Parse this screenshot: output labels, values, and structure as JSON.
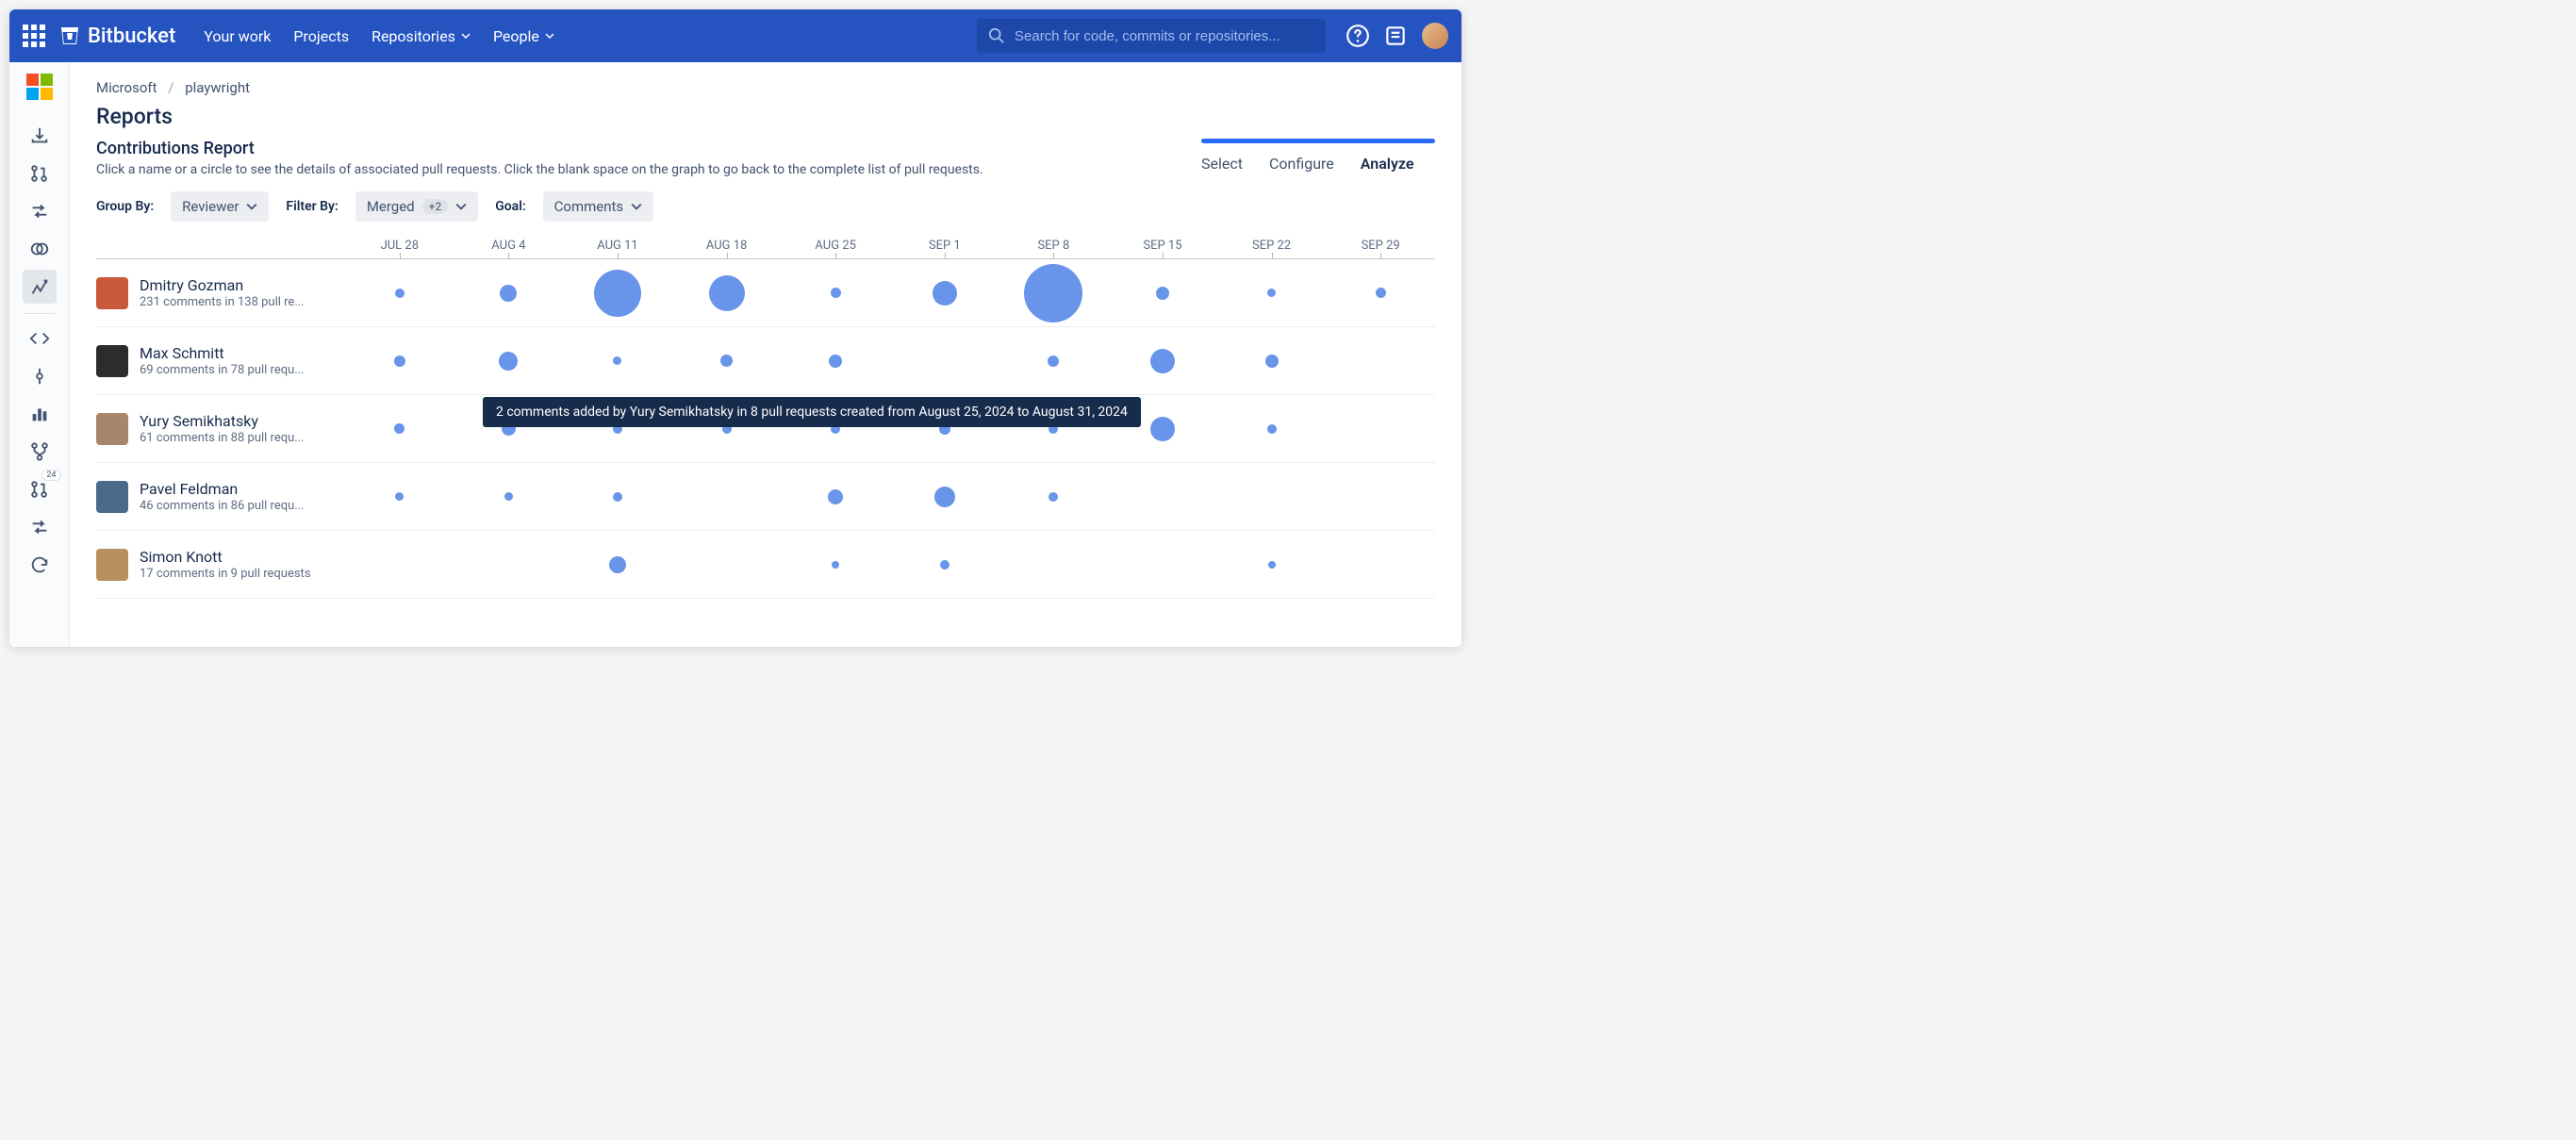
{
  "brand": "Bitbucket",
  "nav": {
    "your_work": "Your work",
    "projects": "Projects",
    "repositories": "Repositories",
    "people": "People"
  },
  "search_placeholder": "Search for code, commits or repositories...",
  "sidebar_badge": "24",
  "breadcrumb": {
    "org": "Microsoft",
    "repo": "playwright"
  },
  "page_title": "Reports",
  "report_title": "Contributions Report",
  "report_desc": "Click a name or a circle to see the details of associated pull requests. Click the blank space on the graph to go back to the complete list of pull requests.",
  "steps": {
    "select": "Select",
    "configure": "Configure",
    "analyze": "Analyze"
  },
  "filters": {
    "group_by_label": "Group By:",
    "group_by_value": "Reviewer",
    "filter_by_label": "Filter By:",
    "filter_by_value": "Merged",
    "filter_extra": "+2",
    "goal_label": "Goal:",
    "goal_value": "Comments"
  },
  "tooltip_text": "2 comments added by Yury Semikhatsky in 8 pull requests created from August 25, 2024 to August 31, 2024",
  "chart": {
    "type": "bubble-grid",
    "bubble_color": "#6894e9",
    "grid_color": "#eceef1",
    "axis_color": "#c1c7d0",
    "dates": [
      "JUL 28",
      "AUG 4",
      "AUG 11",
      "AUG 18",
      "AUG 25",
      "SEP 1",
      "SEP 8",
      "SEP 15",
      "SEP 22",
      "SEP 29"
    ],
    "rows": [
      {
        "name": "Dmitry Gozman",
        "sub": "231 comments in 138 pull re...",
        "avatar_color": "#c85a3a",
        "sizes": [
          10,
          18,
          50,
          38,
          11,
          26,
          62,
          14,
          9,
          11
        ]
      },
      {
        "name": "Max Schmitt",
        "sub": "69 comments in 78 pull requ...",
        "avatar_color": "#2c2c2c",
        "sizes": [
          12,
          20,
          9,
          13,
          14,
          0,
          12,
          26,
          14,
          0
        ]
      },
      {
        "name": "Yury Semikhatsky",
        "sub": "61 comments in 88 pull requ...",
        "avatar_color": "#a8866c",
        "sizes": [
          11,
          15,
          10,
          10,
          10,
          12,
          10,
          26,
          10,
          0
        ]
      },
      {
        "name": "Pavel Feldman",
        "sub": "46 comments in 86 pull requ...",
        "avatar_color": "#4a6a8a",
        "sizes": [
          9,
          9,
          10,
          0,
          16,
          22,
          10,
          0,
          0,
          0
        ]
      },
      {
        "name": "Simon Knott",
        "sub": "17 comments in 9 pull requests",
        "avatar_color": "#b89060",
        "sizes": [
          0,
          0,
          18,
          0,
          8,
          10,
          0,
          0,
          8,
          0
        ]
      }
    ]
  }
}
